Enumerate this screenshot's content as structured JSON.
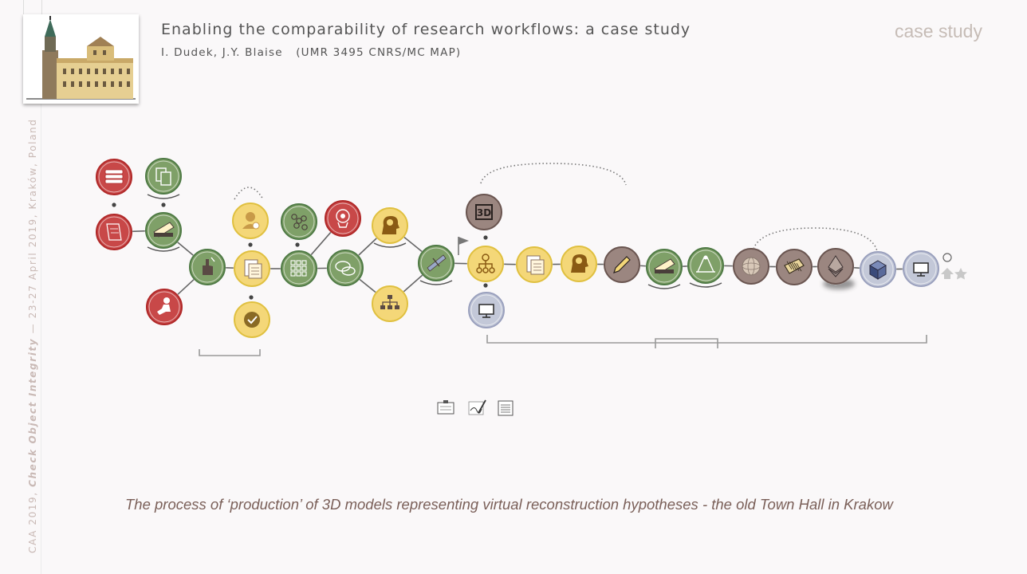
{
  "header": {
    "title": "Enabling the comparability of research workflows: a case study",
    "authors": "I. Dudek, J.Y. Blaise   (UMR 3495 CNRS/MC MAP)",
    "tag": "case study"
  },
  "sidebar": {
    "conference_prefix": "CAA  2019, ",
    "conference_italic": "Check Object Integrity",
    "conference_suffix": " — 23-27 April 2019, Kraków, Poland"
  },
  "thumbnail": {
    "icon": "town-hall-photo"
  },
  "caption": "The process of  ‘production’ of  3D models representing virtual reconstruction hypotheses - the old Town Hall in Krakow",
  "colors": {
    "red": "#c84848",
    "green": "#7fa068",
    "yellow": "#f4d778",
    "brown": "#9b8680",
    "grey_blue": "#c3c8d8",
    "line": "#666666"
  },
  "nodes": [
    {
      "id": "books",
      "color": "red",
      "icon": "books-icon"
    },
    {
      "id": "scroll",
      "color": "red",
      "icon": "scroll-icon"
    },
    {
      "id": "kneel",
      "color": "red",
      "icon": "figure-icon"
    },
    {
      "id": "copy",
      "color": "green",
      "icon": "copy-icon"
    },
    {
      "id": "scan1",
      "color": "green",
      "icon": "scanner-icon"
    },
    {
      "id": "touch",
      "color": "green",
      "icon": "hand-icon"
    },
    {
      "id": "person",
      "color": "yellow",
      "icon": "person-icon"
    },
    {
      "id": "doc1",
      "color": "yellow",
      "icon": "document-icon"
    },
    {
      "id": "check",
      "color": "yellow",
      "icon": "check-icon"
    },
    {
      "id": "network",
      "color": "green",
      "icon": "network-icon"
    },
    {
      "id": "grid",
      "color": "green",
      "icon": "grid-icon"
    },
    {
      "id": "brain",
      "color": "red",
      "icon": "brain-icon"
    },
    {
      "id": "chat",
      "color": "green",
      "icon": "chat-icon"
    },
    {
      "id": "head1",
      "color": "yellow",
      "icon": "head-icon"
    },
    {
      "id": "tree",
      "color": "yellow",
      "icon": "hierarchy-icon"
    },
    {
      "id": "measure",
      "color": "green",
      "icon": "measure-icon"
    },
    {
      "id": "threed",
      "color": "brown",
      "icon": "3d-icon",
      "label": "3D"
    },
    {
      "id": "org",
      "color": "yellow",
      "icon": "org-chart-icon"
    },
    {
      "id": "screen1",
      "color": "grey_blue",
      "icon": "monitor-icon"
    },
    {
      "id": "doc2",
      "color": "yellow",
      "icon": "document-icon"
    },
    {
      "id": "head2",
      "color": "yellow",
      "icon": "head-icon"
    },
    {
      "id": "pencil",
      "color": "brown",
      "icon": "pencil-icon"
    },
    {
      "id": "scan2",
      "color": "green",
      "icon": "scanner-icon"
    },
    {
      "id": "drafting",
      "color": "green",
      "icon": "drafting-icon"
    },
    {
      "id": "sphere",
      "color": "brown",
      "icon": "sphere-icon"
    },
    {
      "id": "barrel",
      "color": "brown",
      "icon": "barrel-icon"
    },
    {
      "id": "ether",
      "color": "brown",
      "icon": "diamond-icon"
    },
    {
      "id": "cube",
      "color": "grey_blue",
      "icon": "cube-icon"
    },
    {
      "id": "screen2",
      "color": "grey_blue",
      "icon": "monitor-icon"
    }
  ],
  "bottom_icons": [
    "clipboard-icon",
    "signature-icon",
    "page-icon"
  ]
}
